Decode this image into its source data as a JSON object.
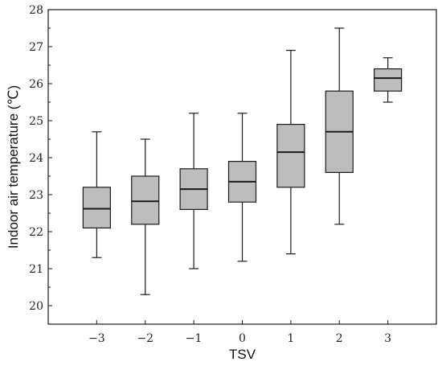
{
  "chart_data": {
    "type": "box",
    "xlabel": "TSV",
    "ylabel": "Indoor air temperature (℃)",
    "ylim": [
      19.5,
      28
    ],
    "yticks": [
      20,
      21,
      22,
      23,
      24,
      25,
      26,
      27,
      28
    ],
    "categories": [
      "-3",
      "-2",
      "-1",
      "0",
      "1",
      "2",
      "3"
    ],
    "boxes": [
      {
        "category": "-3",
        "min": 21.3,
        "q1": 22.1,
        "median": 22.62,
        "q3": 23.2,
        "max": 24.7
      },
      {
        "category": "-2",
        "min": 20.3,
        "q1": 22.2,
        "median": 22.82,
        "q3": 23.5,
        "max": 24.5
      },
      {
        "category": "-1",
        "min": 21.0,
        "q1": 22.6,
        "median": 23.15,
        "q3": 23.7,
        "max": 25.2
      },
      {
        "category": "0",
        "min": 21.2,
        "q1": 22.8,
        "median": 23.35,
        "q3": 23.9,
        "max": 25.2
      },
      {
        "category": "1",
        "min": 21.4,
        "q1": 23.2,
        "median": 24.15,
        "q3": 24.9,
        "max": 26.9
      },
      {
        "category": "2",
        "min": 22.2,
        "q1": 23.6,
        "median": 24.7,
        "q3": 25.8,
        "max": 27.5
      },
      {
        "category": "3",
        "min": 25.5,
        "q1": 25.8,
        "median": 26.15,
        "q3": 26.4,
        "max": 26.7
      }
    ],
    "box_fill": "#bdbdbd",
    "line_color": "#1a1a1a",
    "grid": false
  }
}
